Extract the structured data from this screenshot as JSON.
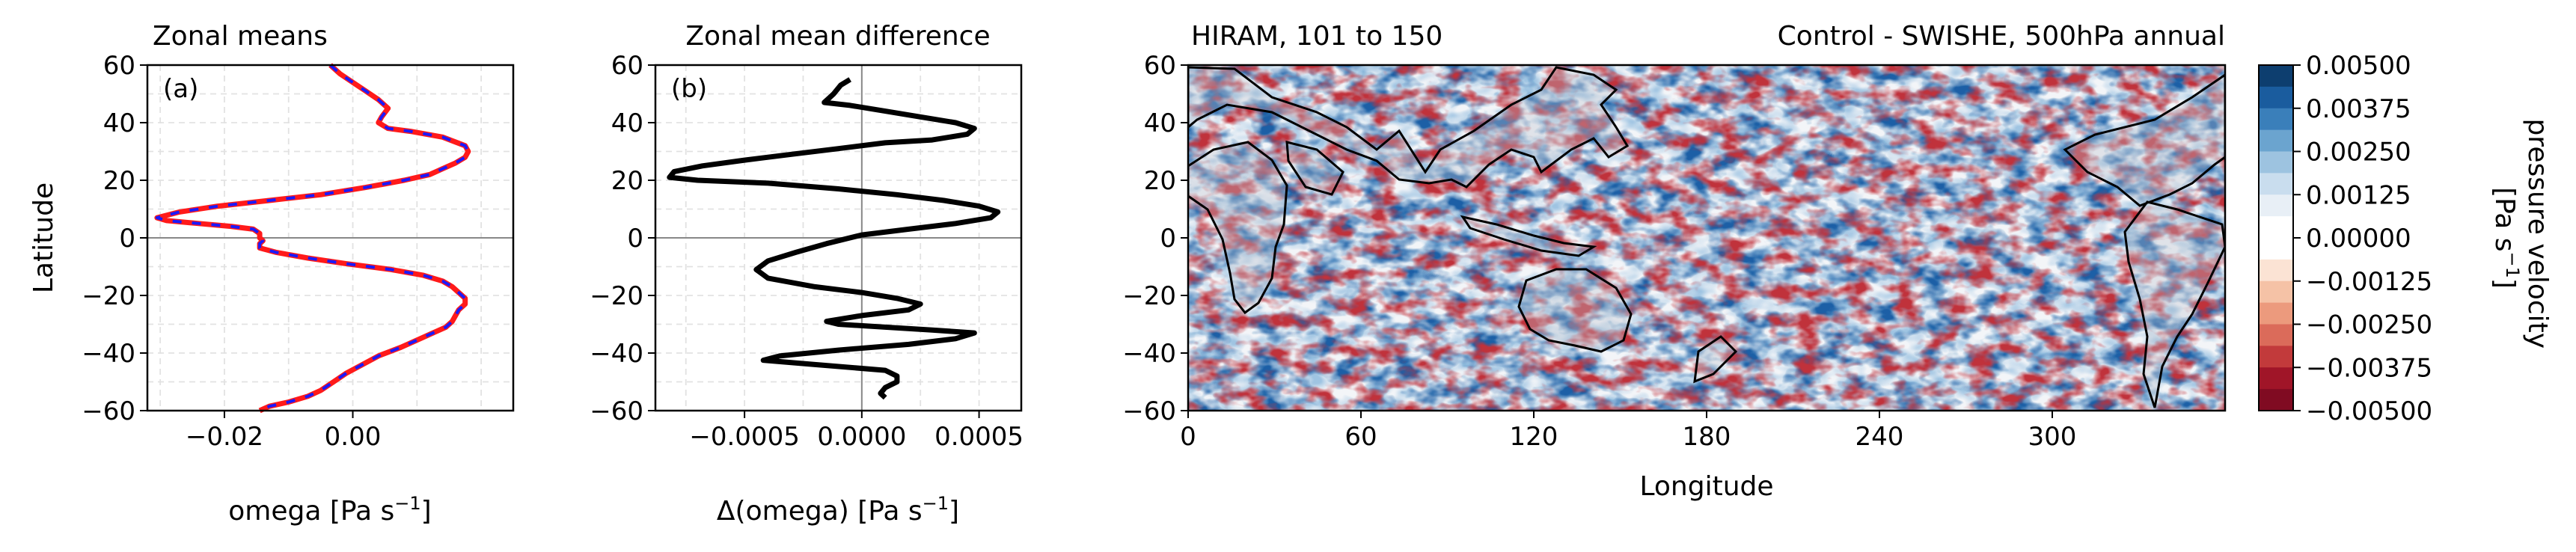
{
  "chart_data": [
    {
      "type": "line",
      "panel_label": "(a)",
      "title": "Zonal means",
      "xlabel": "omega [Pa s",
      "xlabel_sup": "−1",
      "xlabel_end": "]",
      "ylabel": "Latitude",
      "xlim": [
        -0.032,
        0.025
      ],
      "ylim": [
        -60,
        60
      ],
      "xticks": [
        -0.02,
        0.0
      ],
      "xtick_labels": [
        "−0.02",
        "0.00"
      ],
      "yticks": [
        -60,
        -40,
        -20,
        0,
        20,
        40,
        60
      ],
      "ytick_labels": [
        "−60",
        "−40",
        "−20",
        "0",
        "20",
        "40",
        "60"
      ],
      "grid": true,
      "series": [
        {
          "color": "#ff1a1a",
          "style": "solid",
          "points": [
            [
              -0.0035,
              60
            ],
            [
              -0.002,
              57
            ],
            [
              0.0,
              54
            ],
            [
              0.002,
              51
            ],
            [
              0.004,
              48
            ],
            [
              0.0055,
              45
            ],
            [
              0.0045,
              42
            ],
            [
              0.004,
              40
            ],
            [
              0.0055,
              38
            ],
            [
              0.009,
              37
            ],
            [
              0.014,
              35
            ],
            [
              0.0175,
              32
            ],
            [
              0.018,
              30
            ],
            [
              0.0175,
              28
            ],
            [
              0.016,
              26
            ],
            [
              0.014,
              24
            ],
            [
              0.012,
              22
            ],
            [
              0.008,
              20
            ],
            [
              0.002,
              17.5
            ],
            [
              -0.005,
              15
            ],
            [
              -0.013,
              13
            ],
            [
              -0.021,
              11
            ],
            [
              -0.027,
              9
            ],
            [
              -0.0305,
              7
            ],
            [
              -0.029,
              6
            ],
            [
              -0.024,
              5
            ],
            [
              -0.019,
              4
            ],
            [
              -0.0155,
              3
            ],
            [
              -0.0145,
              1.5
            ],
            [
              -0.0145,
              0
            ],
            [
              -0.014,
              -1
            ],
            [
              -0.0145,
              -2
            ],
            [
              -0.0145,
              -3.5
            ],
            [
              -0.012,
              -5
            ],
            [
              -0.007,
              -7
            ],
            [
              -0.001,
              -9
            ],
            [
              0.006,
              -11
            ],
            [
              0.011,
              -13
            ],
            [
              0.014,
              -15
            ],
            [
              0.0155,
              -17
            ],
            [
              0.0165,
              -19
            ],
            [
              0.0175,
              -21
            ],
            [
              0.0175,
              -23
            ],
            [
              0.0165,
              -25
            ],
            [
              0.016,
              -27
            ],
            [
              0.0155,
              -29
            ],
            [
              0.0145,
              -31
            ],
            [
              0.0125,
              -33
            ],
            [
              0.0105,
              -35
            ],
            [
              0.0075,
              -38
            ],
            [
              0.004,
              -41
            ],
            [
              0.0015,
              -44
            ],
            [
              -0.001,
              -47
            ],
            [
              -0.003,
              -50
            ],
            [
              -0.005,
              -53
            ],
            [
              -0.007,
              -55
            ],
            [
              -0.01,
              -57
            ],
            [
              -0.013,
              -58.5
            ],
            [
              -0.0145,
              -60
            ]
          ]
        },
        {
          "color": "#1a1aff",
          "style": "dashed",
          "points": [
            [
              -0.0035,
              60
            ],
            [
              -0.002,
              57
            ],
            [
              0.0,
              54
            ],
            [
              0.002,
              51
            ],
            [
              0.004,
              48
            ],
            [
              0.0055,
              45
            ],
            [
              0.0045,
              42
            ],
            [
              0.004,
              40
            ],
            [
              0.0055,
              38
            ],
            [
              0.009,
              37
            ],
            [
              0.014,
              35
            ],
            [
              0.0175,
              32
            ],
            [
              0.018,
              30
            ],
            [
              0.0175,
              28
            ],
            [
              0.016,
              26
            ],
            [
              0.014,
              24
            ],
            [
              0.012,
              22
            ],
            [
              0.008,
              20
            ],
            [
              0.002,
              17.5
            ],
            [
              -0.005,
              15
            ],
            [
              -0.013,
              13
            ],
            [
              -0.021,
              11
            ],
            [
              -0.027,
              9
            ],
            [
              -0.0305,
              7
            ],
            [
              -0.029,
              6
            ],
            [
              -0.024,
              5
            ],
            [
              -0.019,
              4
            ],
            [
              -0.0155,
              3
            ],
            [
              -0.0145,
              1.5
            ],
            [
              -0.0145,
              0
            ],
            [
              -0.014,
              -1
            ],
            [
              -0.0145,
              -2
            ],
            [
              -0.0145,
              -3.5
            ],
            [
              -0.012,
              -5
            ],
            [
              -0.007,
              -7
            ],
            [
              -0.001,
              -9
            ],
            [
              0.006,
              -11
            ],
            [
              0.011,
              -13
            ],
            [
              0.014,
              -15
            ],
            [
              0.0155,
              -17
            ],
            [
              0.0165,
              -19
            ],
            [
              0.0175,
              -21
            ],
            [
              0.0175,
              -23
            ],
            [
              0.0165,
              -25
            ],
            [
              0.016,
              -27
            ],
            [
              0.0155,
              -29
            ],
            [
              0.0145,
              -31
            ],
            [
              0.0125,
              -33
            ],
            [
              0.0105,
              -35
            ],
            [
              0.0075,
              -38
            ],
            [
              0.004,
              -41
            ],
            [
              0.0015,
              -44
            ],
            [
              -0.001,
              -47
            ],
            [
              -0.003,
              -50
            ],
            [
              -0.005,
              -53
            ],
            [
              -0.007,
              -55
            ],
            [
              -0.01,
              -57
            ],
            [
              -0.013,
              -58.5
            ],
            [
              -0.0145,
              -60
            ]
          ]
        }
      ]
    },
    {
      "type": "line",
      "panel_label": "(b)",
      "title": "Zonal mean difference",
      "xlabel": "Δ(omega) [Pa s",
      "xlabel_sup": "−1",
      "xlabel_end": "]",
      "xlim": [
        -0.00088,
        0.00068
      ],
      "ylim": [
        -60,
        60
      ],
      "xticks": [
        -0.0005,
        0.0,
        0.0005
      ],
      "xtick_labels": [
        "−0.0005",
        "0.0000",
        "0.0005"
      ],
      "yticks": [
        -60,
        -40,
        -20,
        0,
        20,
        40,
        60
      ],
      "ytick_labels": [
        "−60",
        "−40",
        "−20",
        "0",
        "20",
        "40",
        "60"
      ],
      "grid": true,
      "series": [
        {
          "color": "#000000",
          "style": "solid",
          "points": [
            [
              -5e-05,
              55
            ],
            [
              -9e-05,
              53
            ],
            [
              -0.00012,
              50
            ],
            [
              -0.00016,
              47
            ],
            [
              -5e-05,
              46
            ],
            [
              0.0001,
              44
            ],
            [
              0.00025,
              42
            ],
            [
              0.0004,
              40
            ],
            [
              0.00048,
              38
            ],
            [
              0.00045,
              36
            ],
            [
              0.0003,
              34
            ],
            [
              0.0001,
              33
            ],
            [
              -0.0001,
              31
            ],
            [
              -0.0003,
              29
            ],
            [
              -0.0005,
              27
            ],
            [
              -0.00068,
              25
            ],
            [
              -0.0008,
              23
            ],
            [
              -0.00082,
              21
            ],
            [
              -0.0007,
              20
            ],
            [
              -0.0004,
              19
            ],
            [
              -0.0001,
              17
            ],
            [
              0.00015,
              15
            ],
            [
              0.00035,
              13
            ],
            [
              0.0005,
              11
            ],
            [
              0.00058,
              9
            ],
            [
              0.00055,
              7
            ],
            [
              0.0004,
              5
            ],
            [
              0.0002,
              3
            ],
            [
              0.0,
              1
            ],
            [
              -0.00015,
              -2
            ],
            [
              -0.00028,
              -5
            ],
            [
              -0.0004,
              -8
            ],
            [
              -0.00045,
              -11
            ],
            [
              -0.0004,
              -14
            ],
            [
              -0.0002,
              -17
            ],
            [
              0.0,
              -19
            ],
            [
              0.00015,
              -21
            ],
            [
              0.00025,
              -23
            ],
            [
              0.0002,
              -25
            ],
            [
              0.0,
              -27
            ],
            [
              -0.00015,
              -29
            ],
            [
              -0.0001,
              -30
            ],
            [
              0.0001,
              -31
            ],
            [
              0.0003,
              -32
            ],
            [
              0.00048,
              -33
            ],
            [
              0.0004,
              -35
            ],
            [
              0.0002,
              -37
            ],
            [
              -0.0001,
              -39
            ],
            [
              -0.00035,
              -41
            ],
            [
              -0.00042,
              -42.5
            ],
            [
              -0.0002,
              -44
            ],
            [
              0.0001,
              -46
            ],
            [
              0.00015,
              -48
            ],
            [
              0.00015,
              -50
            ],
            [
              0.0001,
              -52
            ],
            [
              8e-05,
              -54
            ],
            [
              0.0001,
              -55.5
            ]
          ]
        }
      ]
    },
    {
      "type": "heatmap",
      "title_left": "HIRAM, 101 to 150",
      "title_right": "Control - SWISHE, 500hPa annual",
      "xlabel": "Longitude",
      "xlim": [
        0,
        360
      ],
      "ylim": [
        -60,
        60
      ],
      "xticks": [
        0,
        60,
        120,
        180,
        240,
        300
      ],
      "xtick_labels": [
        "0",
        "60",
        "120",
        "180",
        "240",
        "300"
      ],
      "yticks": [
        -60,
        -40,
        -20,
        0,
        20,
        40,
        60
      ],
      "ytick_labels": [
        "−60",
        "−40",
        "−20",
        "0",
        "20",
        "40",
        "60"
      ],
      "colormap": "RdBu",
      "vmin": -0.005,
      "vmax": 0.005
    }
  ],
  "colorbar": {
    "label_line1": "pressure velocity",
    "label_line2": "[Pa s",
    "label_sup": "−1",
    "label_end": "]",
    "tick_labels": [
      "0.00500",
      "0.00375",
      "0.00250",
      "0.00125",
      "0.00000",
      "−0.00125",
      "−0.00250",
      "−0.00375",
      "−0.00500"
    ],
    "colors": [
      "#0d3e6f",
      "#1a5c9e",
      "#3a7fba",
      "#6ba4cf",
      "#9dc3e0",
      "#c9ddee",
      "#e8eff6",
      "#ffffff",
      "#ffffff",
      "#fbe3d4",
      "#f5c2a6",
      "#ec9a7d",
      "#db6b5a",
      "#c23a3b",
      "#a01528",
      "#800b22"
    ]
  }
}
